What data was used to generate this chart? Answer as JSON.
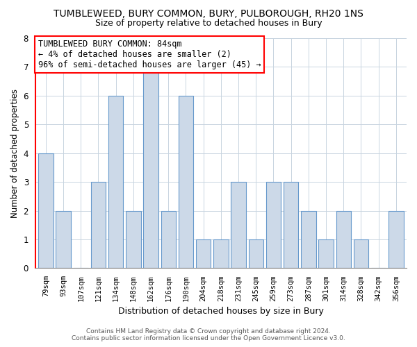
{
  "title": "TUMBLEWEED, BURY COMMON, BURY, PULBOROUGH, RH20 1NS",
  "subtitle": "Size of property relative to detached houses in Bury",
  "xlabel": "Distribution of detached houses by size in Bury",
  "ylabel": "Number of detached properties",
  "categories": [
    "79sqm",
    "93sqm",
    "107sqm",
    "121sqm",
    "134sqm",
    "148sqm",
    "162sqm",
    "176sqm",
    "190sqm",
    "204sqm",
    "218sqm",
    "231sqm",
    "245sqm",
    "259sqm",
    "273sqm",
    "287sqm",
    "301sqm",
    "314sqm",
    "328sqm",
    "342sqm",
    "356sqm"
  ],
  "values": [
    4,
    2,
    0,
    3,
    6,
    2,
    7,
    2,
    6,
    1,
    1,
    3,
    1,
    3,
    3,
    2,
    1,
    2,
    1,
    0,
    2
  ],
  "bar_color": "#ccd9e8",
  "bar_edge_color": "#6699cc",
  "ylim": [
    0,
    8
  ],
  "yticks": [
    0,
    1,
    2,
    3,
    4,
    5,
    6,
    7,
    8
  ],
  "annotation_title": "TUMBLEWEED BURY COMMON: 84sqm",
  "annotation_line1": "← 4% of detached houses are smaller (2)",
  "annotation_line2": "96% of semi-detached houses are larger (45) →",
  "footer_line1": "Contains HM Land Registry data © Crown copyright and database right 2024.",
  "footer_line2": "Contains public sector information licensed under the Open Government Licence v3.0.",
  "title_fontsize": 10,
  "subtitle_fontsize": 9,
  "annotation_fontsize": 8.5,
  "footer_fontsize": 6.5,
  "ylabel_fontsize": 8.5,
  "xlabel_fontsize": 9
}
